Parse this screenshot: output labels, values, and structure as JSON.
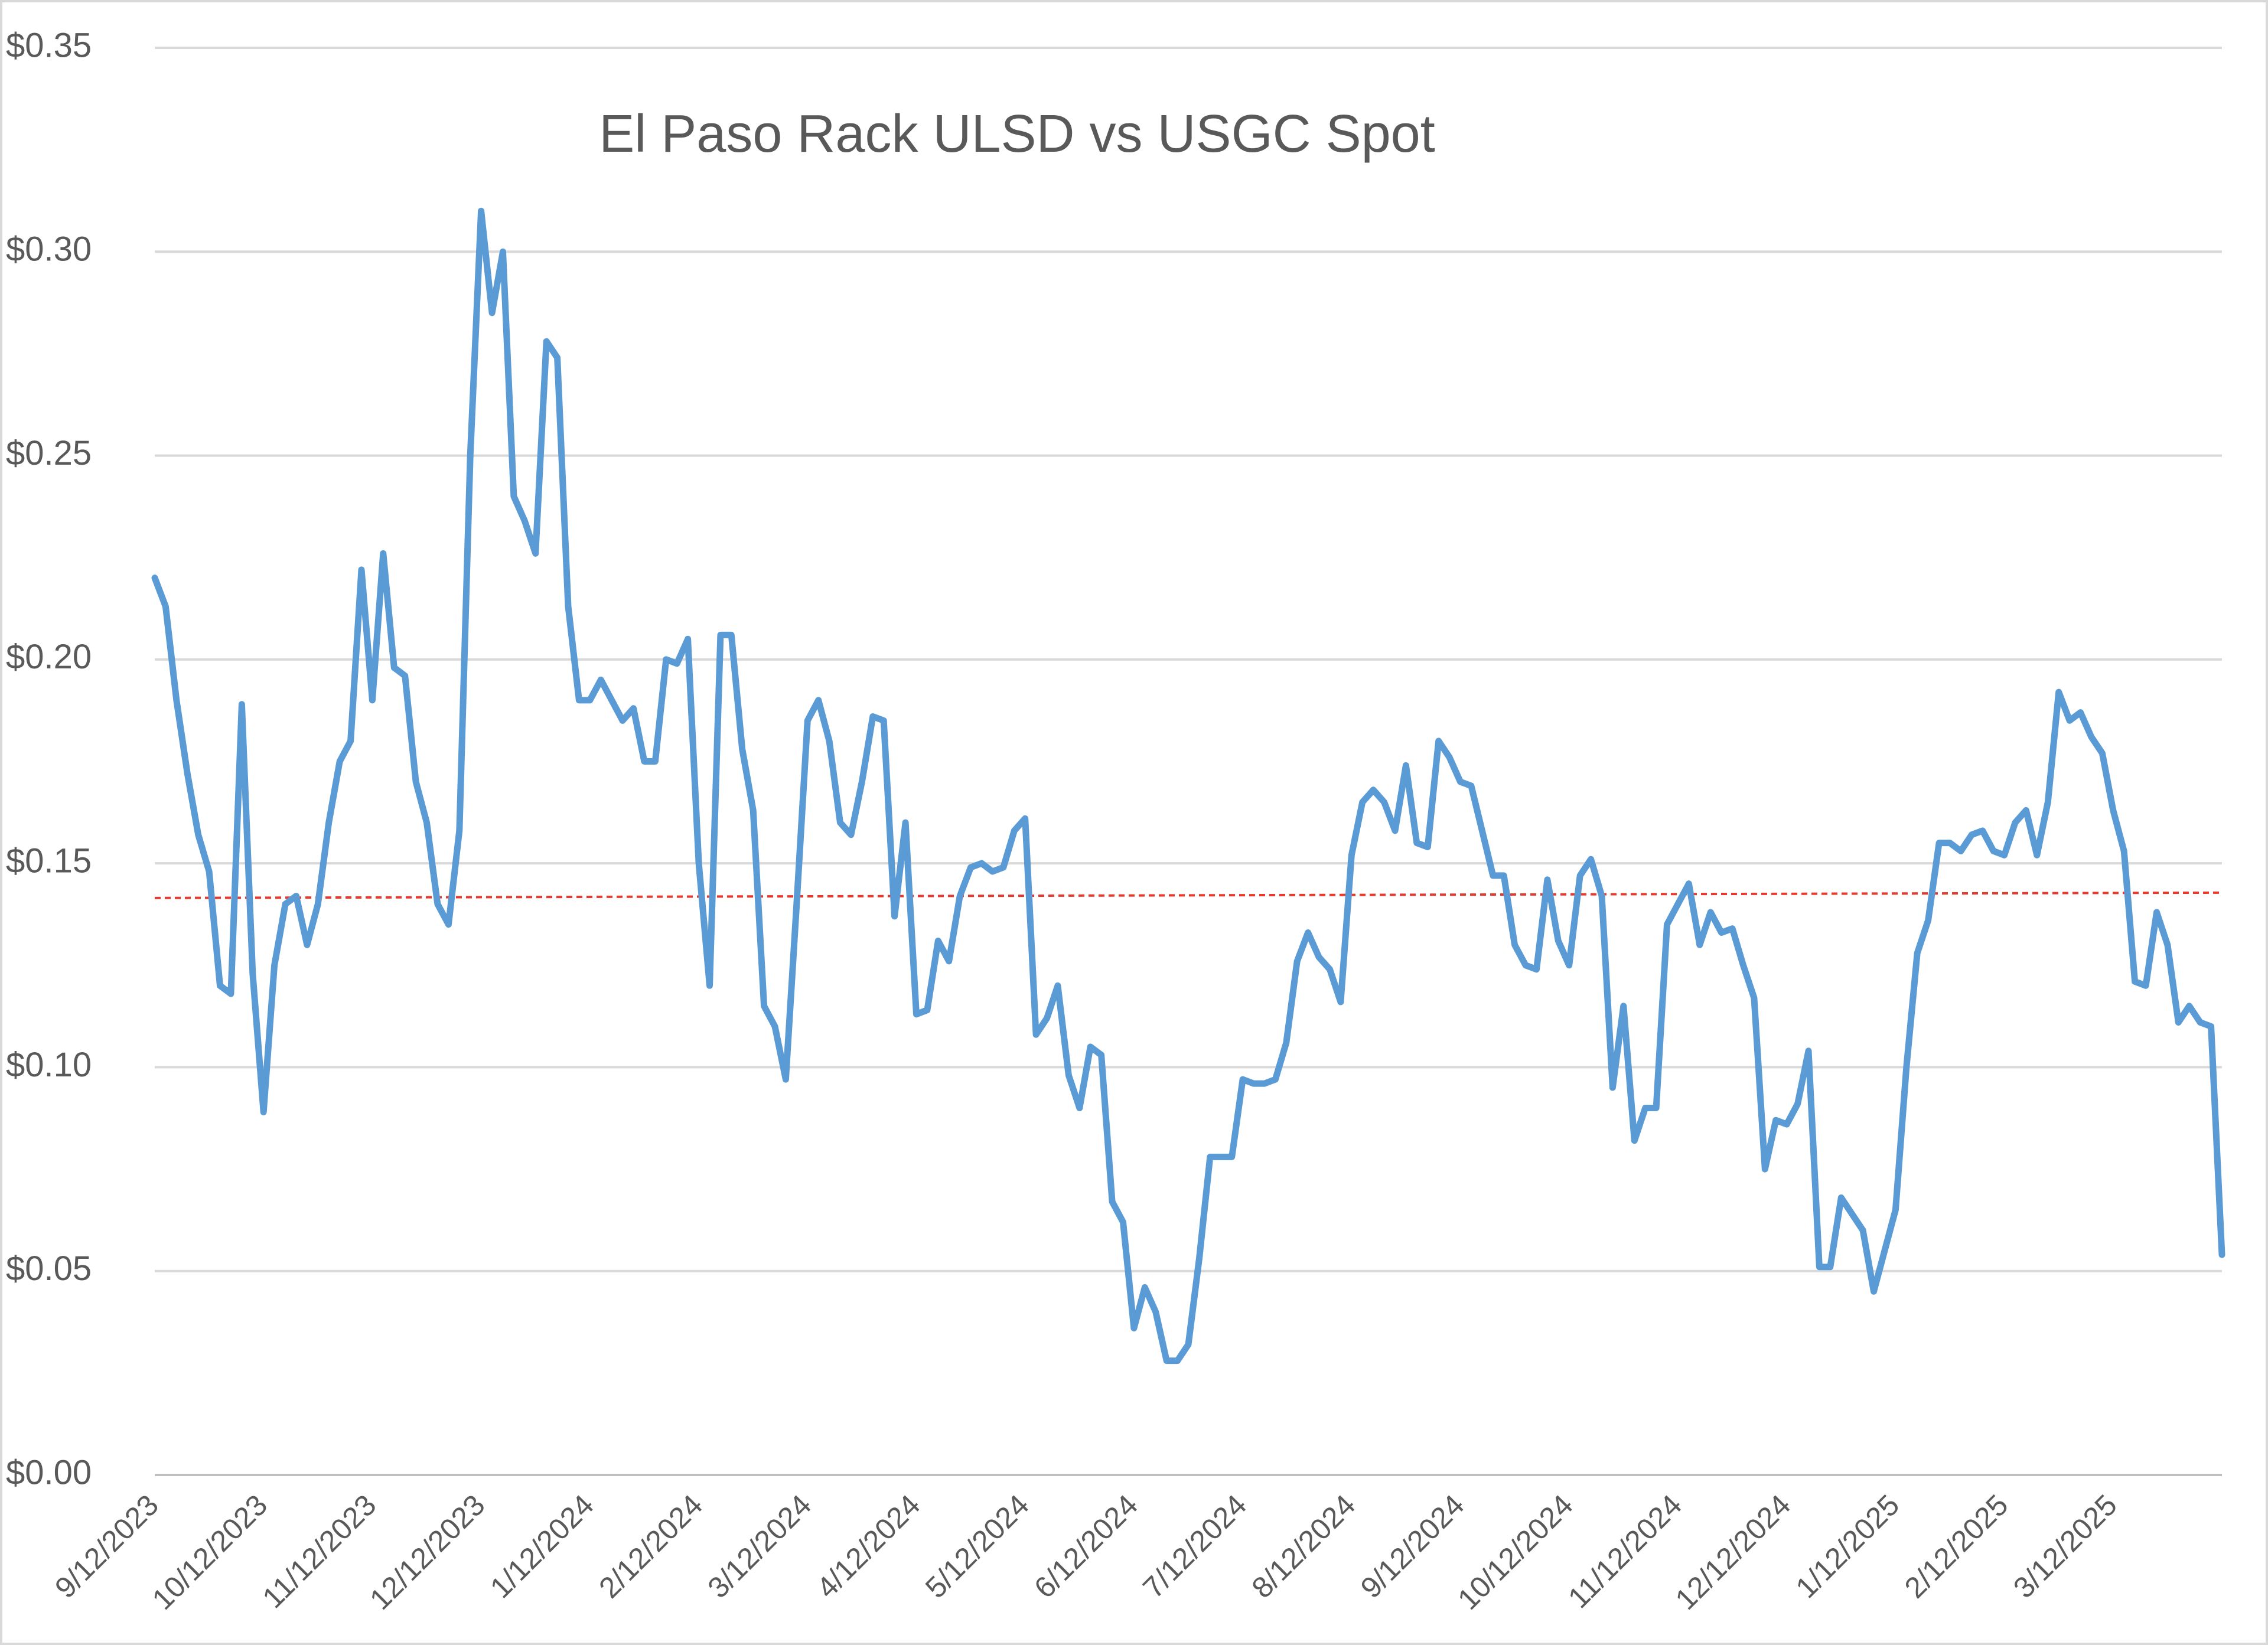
{
  "chart_data": {
    "type": "line",
    "title": "El Paso Rack ULSD vs USGC Spot",
    "categories": [
      "9/12/2023",
      null,
      null,
      null,
      null,
      null,
      null,
      null,
      null,
      null,
      "10/12/2023",
      null,
      null,
      null,
      null,
      null,
      null,
      null,
      null,
      null,
      "11/12/2023",
      null,
      null,
      null,
      null,
      null,
      null,
      null,
      null,
      null,
      "12/12/2023",
      null,
      null,
      null,
      null,
      null,
      null,
      null,
      null,
      null,
      "1/12/2024",
      null,
      null,
      null,
      null,
      null,
      null,
      null,
      null,
      null,
      "2/12/2024",
      null,
      null,
      null,
      null,
      null,
      null,
      null,
      null,
      null,
      "3/12/2024",
      null,
      null,
      null,
      null,
      null,
      null,
      null,
      null,
      null,
      "4/12/2024",
      null,
      null,
      null,
      null,
      null,
      null,
      null,
      null,
      null,
      "5/12/2024",
      null,
      null,
      null,
      null,
      null,
      null,
      null,
      null,
      null,
      "6/12/2024",
      null,
      null,
      null,
      null,
      null,
      null,
      null,
      null,
      null,
      "7/12/2024",
      null,
      null,
      null,
      null,
      null,
      null,
      null,
      null,
      null,
      "8/12/2024",
      null,
      null,
      null,
      null,
      null,
      null,
      null,
      null,
      null,
      "9/12/2024",
      null,
      null,
      null,
      null,
      null,
      null,
      null,
      null,
      null,
      "10/12/2024",
      null,
      null,
      null,
      null,
      null,
      null,
      null,
      null,
      null,
      "11/12/2024",
      null,
      null,
      null,
      null,
      null,
      null,
      null,
      null,
      null,
      "12/12/2024",
      null,
      null,
      null,
      null,
      null,
      null,
      null,
      null,
      null,
      "1/12/2025",
      null,
      null,
      null,
      null,
      null,
      null,
      null,
      null,
      null,
      "2/12/2025",
      null,
      null,
      null,
      null,
      null,
      null,
      null,
      null,
      null,
      "3/12/2025",
      null,
      null,
      null,
      null,
      null,
      null,
      null,
      null,
      null,
      null
    ],
    "series": [
      {
        "color": "#5b9bd5",
        "values": [
          0.22,
          0.213,
          0.19,
          0.172,
          0.157,
          0.148,
          0.12,
          0.118,
          0.189,
          0.123,
          0.089,
          0.125,
          0.14,
          0.142,
          0.13,
          0.14,
          0.16,
          0.175,
          0.18,
          0.222,
          0.19,
          0.226,
          0.198,
          0.196,
          0.17,
          0.16,
          0.14,
          0.135,
          0.158,
          0.25,
          0.31,
          0.285,
          0.3,
          0.24,
          0.234,
          0.226,
          0.278,
          0.274,
          0.213,
          0.19,
          0.19,
          0.195,
          0.19,
          0.185,
          0.188,
          0.175,
          0.175,
          0.2,
          0.199,
          0.205,
          0.15,
          0.12,
          0.206,
          0.206,
          0.178,
          0.163,
          0.115,
          0.11,
          0.097,
          0.14,
          0.185,
          0.19,
          0.18,
          0.16,
          0.157,
          0.17,
          0.186,
          0.185,
          0.137,
          0.16,
          0.113,
          0.114,
          0.131,
          0.126,
          0.142,
          0.149,
          0.15,
          0.148,
          0.149,
          0.158,
          0.161,
          0.108,
          0.112,
          0.12,
          0.098,
          0.09,
          0.105,
          0.103,
          0.067,
          0.062,
          0.036,
          0.046,
          0.04,
          0.028,
          0.028,
          0.032,
          0.053,
          0.078,
          0.078,
          0.078,
          0.097,
          0.096,
          0.096,
          0.097,
          0.106,
          0.126,
          0.133,
          0.127,
          0.124,
          0.116,
          0.152,
          0.165,
          0.168,
          0.165,
          0.158,
          0.174,
          0.155,
          0.154,
          0.18,
          0.176,
          0.17,
          0.169,
          0.158,
          0.147,
          0.147,
          0.13,
          0.125,
          0.124,
          0.146,
          0.131,
          0.125,
          0.147,
          0.151,
          0.142,
          0.095,
          0.115,
          0.082,
          0.09,
          0.09,
          0.135,
          0.14,
          0.145,
          0.13,
          0.138,
          0.133,
          0.134,
          0.125,
          0.117,
          0.075,
          0.087,
          0.086,
          0.091,
          0.104,
          0.051,
          0.051,
          0.068,
          0.064,
          0.06,
          0.045,
          0.055,
          0.065,
          0.1,
          0.128,
          0.136,
          0.155,
          0.155,
          0.153,
          0.157,
          0.158,
          0.153,
          0.152,
          0.16,
          0.163,
          0.152,
          0.165,
          0.192,
          0.185,
          0.187,
          0.181,
          0.177,
          0.163,
          0.153,
          0.121,
          0.12,
          0.138,
          0.13,
          0.111,
          0.115,
          0.111,
          0.11,
          0.054
        ]
      }
    ],
    "trendline": {
      "color": "#e8392f",
      "values": [
        0.1415,
        0.1428
      ]
    },
    "ylim": [
      0,
      0.35
    ],
    "yticks": [
      {
        "value": 0,
        "label": "$0.00"
      },
      {
        "value": 0.05,
        "label": "$0.05"
      },
      {
        "value": 0.1,
        "label": "$0.10"
      },
      {
        "value": 0.15,
        "label": "$0.15"
      },
      {
        "value": 0.2,
        "label": "$0.20"
      },
      {
        "value": 0.25,
        "label": "$0.25"
      },
      {
        "value": 0.3,
        "label": "$0.30"
      },
      {
        "value": 0.35,
        "label": "$0.35"
      }
    ],
    "grid": true
  }
}
